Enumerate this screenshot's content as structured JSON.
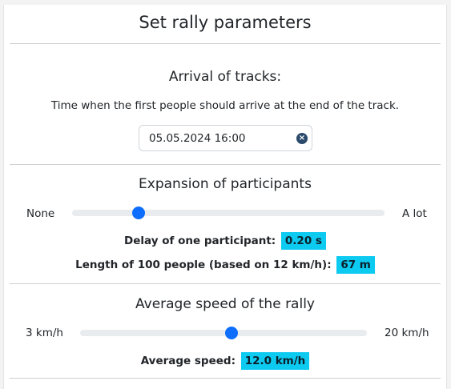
{
  "title": "Set rally parameters",
  "arrival": {
    "heading": "Arrival of tracks:",
    "description": "Time when the first people should arrive at the end of the track.",
    "datetime_value": "05.05.2024 16:00",
    "clear_glyph": "×"
  },
  "expansion": {
    "heading": "Expansion of participants",
    "min_label": "None",
    "max_label": "A lot",
    "slider_fraction": 0.2,
    "delay_label": "Delay of one participant:",
    "delay_value": "0.20 s",
    "length_label": "Length of 100 people (based on 12 km/h):",
    "length_value": "67 m"
  },
  "speed": {
    "heading": "Average speed of the rally",
    "min_label": "3 km/h",
    "max_label": "20 km/h",
    "slider_fraction": 0.53,
    "avg_label": "Average speed:",
    "avg_value": "12.0 km/h"
  },
  "colors": {
    "accent": "#0d6efd",
    "badge": "#0dcaf0",
    "clear_button": "#2b4a6b"
  }
}
